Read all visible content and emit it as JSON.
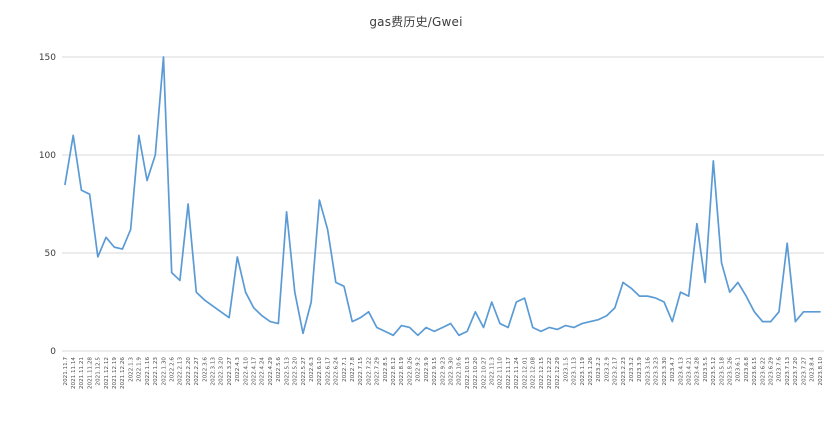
{
  "chart_data": {
    "type": "line",
    "title": "gas费历史/Gwei",
    "xlabel": "",
    "ylabel": "",
    "ylim": [
      0,
      150
    ],
    "yticks": [
      0,
      50,
      100,
      150
    ],
    "grid": true,
    "legend": "none",
    "line_color": "#5b9bd5",
    "grid_color": "#d9d9d9",
    "tick_label_color": "#4a4a4a",
    "categories": [
      "2021.11.7",
      "2021.11.14",
      "2021.11.21",
      "2021.11.28",
      "2021.12.5",
      "2021.12.12",
      "2021.12.19",
      "2021.12.26",
      "2022.1.3",
      "2022.1.9",
      "2022.1.16",
      "2022.1.23",
      "2022.1.30",
      "2022.2.6",
      "2022.2.13",
      "2022.2.20",
      "2022.2.27",
      "2022.3.6",
      "2022.3.13",
      "2022.3.20",
      "2022.3.27",
      "2022.4.3",
      "2022.4.10",
      "2022.4.17",
      "2022.4.24",
      "2022.4.29",
      "2022.5.6",
      "2022.5.13",
      "2022.5.20",
      "2022.5.27",
      "2022.6.3",
      "2022.6.10",
      "2022.6.17",
      "2022.6.24",
      "2022.7.1",
      "2022.7.8",
      "2022.7.15",
      "2022.7.22",
      "2022.7.29",
      "2022.8.5",
      "2022.8.12",
      "2022.8.19",
      "2022.8.26",
      "2022.9.2",
      "2022.9.9",
      "2022.9.15",
      "2022.9.23",
      "2022.9.30",
      "2022.10.6",
      "2022.10.13",
      "2022.10.20",
      "2022.10.27",
      "2022.11.3",
      "2022.11.10",
      "2022.11.17",
      "2022.11.24",
      "2022.12.01",
      "2022.12.08",
      "2022.12.15",
      "2022.12.22",
      "2022.12.29",
      "2023.1.5",
      "2023.1.13",
      "2023.1.19",
      "2023.1.26",
      "2023.2.2",
      "2023.2.9",
      "2023.2.17",
      "2023.2.23",
      "2023.3.2",
      "2023.3.9",
      "2023.3.16",
      "2023.3.23",
      "2023.3.30",
      "2023.4.7",
      "2023.4.13",
      "2023.4.21",
      "2023.4.28",
      "2023.5.5",
      "2023.5.12",
      "2023.5.18",
      "2023.5.26",
      "2023.6.1",
      "2023.6.8",
      "2023.6.15",
      "2023.6.22",
      "2023.6.29",
      "2023.7.6",
      "2023.7.13",
      "2023.7.20",
      "2023.7.27",
      "2023.8.4",
      "2023.8.10"
    ],
    "values": [
      85,
      110,
      82,
      80,
      48,
      58,
      53,
      52,
      62,
      110,
      87,
      100,
      150,
      40,
      36,
      75,
      30,
      26,
      23,
      20,
      17,
      48,
      30,
      22,
      18,
      15,
      14,
      71,
      30,
      9,
      25,
      77,
      62,
      35,
      33,
      15,
      17,
      20,
      12,
      10,
      8,
      13,
      12,
      8,
      12,
      10,
      12,
      14,
      8,
      10,
      20,
      12,
      25,
      14,
      12,
      25,
      27,
      12,
      10,
      12,
      11,
      13,
      12,
      14,
      15,
      16,
      18,
      22,
      35,
      32,
      28,
      28,
      27,
      25,
      15,
      30,
      28,
      65,
      35,
      97,
      45,
      30,
      35,
      28,
      20,
      15,
      15,
      20,
      55,
      15,
      20,
      20,
      20
    ]
  }
}
